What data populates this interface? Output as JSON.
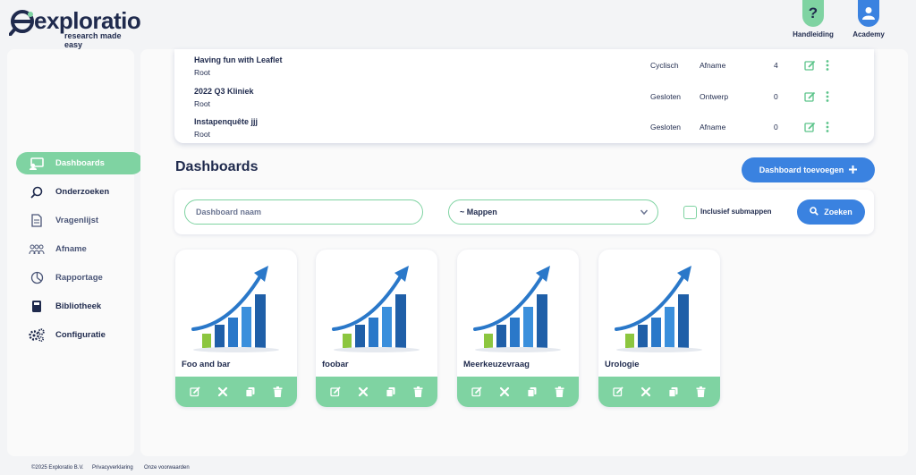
{
  "brand": {
    "name": "exploratio",
    "tagline": "research made easy"
  },
  "header": {
    "help_label": "Handleiding",
    "help_glyph": "?",
    "academy_label": "Academy"
  },
  "sidebar": {
    "items": [
      {
        "label": "Dashboards",
        "icon": "dashboard-icon",
        "active": true
      },
      {
        "label": "Onderzoeken",
        "icon": "search-icon"
      },
      {
        "label": "Vragenlijst",
        "icon": "document-icon"
      },
      {
        "label": "Afname",
        "icon": "people-icon"
      },
      {
        "label": "Rapportage",
        "icon": "pie-chart-icon"
      },
      {
        "label": "Bibliotheek",
        "icon": "library-icon"
      },
      {
        "label": "Configuratie",
        "icon": "gears-icon"
      }
    ]
  },
  "research_table": {
    "rows": [
      {
        "name": "Having fun with Leaflet",
        "folder": "Root",
        "status": "Cyclisch",
        "phase": "Afname",
        "count": "4"
      },
      {
        "name": "2022 Q3 Kliniek",
        "folder": "Root",
        "status": "Gesloten",
        "phase": "Ontwerp",
        "count": "0"
      },
      {
        "name": "Instapenquête jjj",
        "folder": "Root",
        "status": "Gesloten",
        "phase": "Afname",
        "count": "0"
      }
    ]
  },
  "dashboards": {
    "title": "Dashboards",
    "add_button": "Dashboard toevoegen",
    "filter": {
      "name_placeholder": "Dashboard naam",
      "folder_select": "~ Mappen",
      "include_subfolders": "Inclusief submappen",
      "search_button": "Zoeken"
    },
    "cards": [
      {
        "title": "Foo and bar"
      },
      {
        "title": "foobar"
      },
      {
        "title": "Meerkeuzevraag"
      },
      {
        "title": "Urologie"
      }
    ]
  },
  "footer": {
    "copyright": "©2025 Exploratio B.V.",
    "privacy": "Privacyverklaring",
    "terms": "Onze voorwaarden"
  },
  "colors": {
    "navy": "#1f2a4d",
    "green": "#7fd3a2",
    "blue": "#3a82e0"
  }
}
